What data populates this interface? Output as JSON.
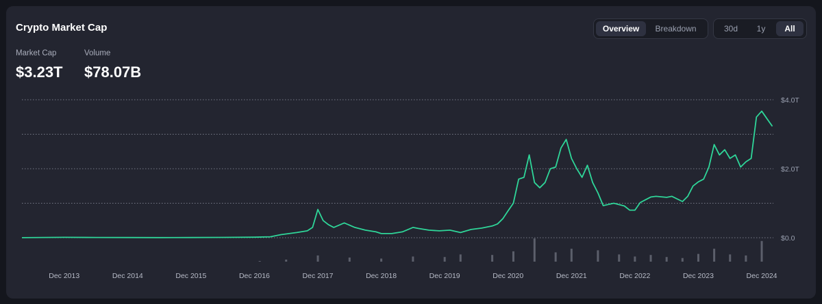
{
  "header": {
    "title": "Crypto Market Cap"
  },
  "view_toggle": {
    "options": [
      "Overview",
      "Breakdown"
    ],
    "active": "Overview"
  },
  "range_toggle": {
    "options": [
      "30d",
      "1y",
      "All"
    ],
    "active": "All"
  },
  "stats": {
    "market_cap": {
      "label": "Market Cap",
      "value": "$3.23T"
    },
    "volume": {
      "label": "Volume",
      "value": "$78.07B"
    }
  },
  "colors": {
    "line": "#2fd699",
    "volume_bars": "#5c5f6b",
    "background": "#232530",
    "page": "#14161d"
  },
  "chart_data": {
    "type": "line",
    "title": "",
    "xlabel": "",
    "ylabel": "",
    "ylim": [
      0,
      4.0
    ],
    "unit": "T",
    "y_ticks": [
      "$0.0",
      "$2.0T",
      "$4.0T"
    ],
    "x_ticks": [
      "Dec 2013",
      "Dec 2014",
      "Dec 2015",
      "Dec 2016",
      "Dec 2017",
      "Dec 2018",
      "Dec 2019",
      "Dec 2020",
      "Dec 2021",
      "Dec 2022",
      "Dec 2023",
      "Dec 2024"
    ],
    "grid": true,
    "legend": "none",
    "series": [
      {
        "x": [
          "2013-04",
          "2013-12",
          "2014-06",
          "2014-12",
          "2015-06",
          "2015-12",
          "2016-06",
          "2016-12",
          "2017-03",
          "2017-05",
          "2017-08",
          "2017-10",
          "2017-11",
          "2017-12",
          "2018-01",
          "2018-02",
          "2018-03",
          "2018-05",
          "2018-07",
          "2018-09",
          "2018-11",
          "2018-12",
          "2019-02",
          "2019-04",
          "2019-06",
          "2019-07",
          "2019-09",
          "2019-11",
          "2020-01",
          "2020-03",
          "2020-05",
          "2020-07",
          "2020-09",
          "2020-10",
          "2020-11",
          "2020-12",
          "2021-01",
          "2021-02",
          "2021-03",
          "2021-04",
          "2021-05",
          "2021-06",
          "2021-07",
          "2021-08",
          "2021-09",
          "2021-10",
          "2021-11",
          "2021-12",
          "2022-01",
          "2022-02",
          "2022-03",
          "2022-04",
          "2022-05",
          "2022-06",
          "2022-08",
          "2022-10",
          "2022-11",
          "2022-12",
          "2023-01",
          "2023-02",
          "2023-03",
          "2023-04",
          "2023-06",
          "2023-07",
          "2023-09",
          "2023-10",
          "2023-11",
          "2023-12",
          "2024-01",
          "2024-02",
          "2024-03",
          "2024-04",
          "2024-05",
          "2024-06",
          "2024-07",
          "2024-08",
          "2024-09",
          "2024-10",
          "2024-11",
          "2024-12",
          "2025-01",
          "2025-02"
        ],
        "y": [
          0.002,
          0.012,
          0.008,
          0.005,
          0.004,
          0.006,
          0.01,
          0.016,
          0.028,
          0.09,
          0.15,
          0.2,
          0.3,
          0.82,
          0.5,
          0.38,
          0.3,
          0.43,
          0.3,
          0.22,
          0.17,
          0.12,
          0.12,
          0.17,
          0.3,
          0.27,
          0.22,
          0.2,
          0.22,
          0.15,
          0.24,
          0.28,
          0.34,
          0.4,
          0.55,
          0.78,
          1.0,
          1.7,
          1.75,
          2.4,
          1.6,
          1.45,
          1.6,
          2.0,
          2.05,
          2.6,
          2.85,
          2.3,
          2.0,
          1.75,
          2.1,
          1.6,
          1.3,
          0.93,
          1.0,
          0.92,
          0.8,
          0.8,
          1.02,
          1.1,
          1.18,
          1.2,
          1.17,
          1.2,
          1.05,
          1.2,
          1.5,
          1.62,
          1.7,
          2.05,
          2.7,
          2.4,
          2.55,
          2.3,
          2.4,
          2.05,
          2.2,
          2.3,
          3.5,
          3.67,
          3.45,
          3.23
        ]
      }
    ],
    "volume": {
      "x": [
        "2017-01",
        "2017-06",
        "2017-12",
        "2018-06",
        "2018-12",
        "2019-06",
        "2019-12",
        "2020-03",
        "2020-09",
        "2021-01",
        "2021-05",
        "2021-09",
        "2021-12",
        "2022-05",
        "2022-09",
        "2022-12",
        "2023-03",
        "2023-06",
        "2023-09",
        "2023-12",
        "2024-03",
        "2024-06",
        "2024-09",
        "2024-12"
      ],
      "y": [
        0.5,
        4,
        12,
        8,
        6,
        10,
        9,
        14,
        13,
        20,
        45,
        18,
        25,
        22,
        14,
        10,
        13,
        9,
        7,
        15,
        25,
        14,
        12,
        40
      ]
    }
  }
}
